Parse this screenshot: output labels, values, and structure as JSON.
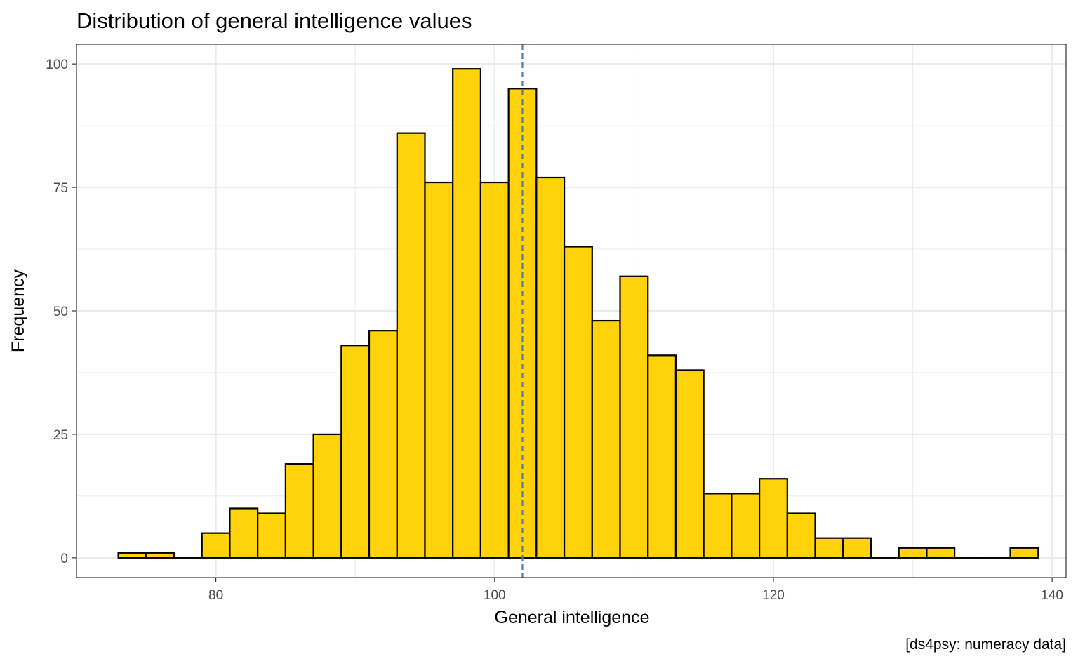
{
  "chart_data": {
    "type": "bar",
    "title": "Distribution of general intelligence values",
    "xlabel": "General intelligence",
    "ylabel": "Frequency",
    "caption": "[ds4psy: numeracy data]",
    "xlim": [
      70,
      141
    ],
    "ylim": [
      -4,
      104
    ],
    "x_ticks": [
      80,
      100,
      120,
      140
    ],
    "y_ticks": [
      0,
      25,
      50,
      75,
      100
    ],
    "bin_width": 2,
    "bins": [
      {
        "x0": 73,
        "x1": 75,
        "count": 1
      },
      {
        "x0": 75,
        "x1": 77,
        "count": 1
      },
      {
        "x0": 77,
        "x1": 79,
        "count": 0
      },
      {
        "x0": 79,
        "x1": 81,
        "count": 5
      },
      {
        "x0": 81,
        "x1": 83,
        "count": 10
      },
      {
        "x0": 83,
        "x1": 85,
        "count": 9
      },
      {
        "x0": 85,
        "x1": 87,
        "count": 19
      },
      {
        "x0": 87,
        "x1": 89,
        "count": 25
      },
      {
        "x0": 89,
        "x1": 91,
        "count": 43
      },
      {
        "x0": 91,
        "x1": 93,
        "count": 46
      },
      {
        "x0": 93,
        "x1": 95,
        "count": 86
      },
      {
        "x0": 95,
        "x1": 97,
        "count": 76
      },
      {
        "x0": 97,
        "x1": 99,
        "count": 99
      },
      {
        "x0": 99,
        "x1": 101,
        "count": 76
      },
      {
        "x0": 101,
        "x1": 103,
        "count": 95
      },
      {
        "x0": 103,
        "x1": 105,
        "count": 77
      },
      {
        "x0": 105,
        "x1": 107,
        "count": 63
      },
      {
        "x0": 107,
        "x1": 109,
        "count": 48
      },
      {
        "x0": 109,
        "x1": 111,
        "count": 57
      },
      {
        "x0": 111,
        "x1": 113,
        "count": 41
      },
      {
        "x0": 113,
        "x1": 115,
        "count": 38
      },
      {
        "x0": 115,
        "x1": 117,
        "count": 13
      },
      {
        "x0": 117,
        "x1": 119,
        "count": 13
      },
      {
        "x0": 119,
        "x1": 121,
        "count": 16
      },
      {
        "x0": 121,
        "x1": 123,
        "count": 9
      },
      {
        "x0": 123,
        "x1": 125,
        "count": 4
      },
      {
        "x0": 125,
        "x1": 127,
        "count": 4
      },
      {
        "x0": 127,
        "x1": 129,
        "count": 0
      },
      {
        "x0": 129,
        "x1": 131,
        "count": 2
      },
      {
        "x0": 131,
        "x1": 133,
        "count": 2
      },
      {
        "x0": 133,
        "x1": 135,
        "count": 0
      },
      {
        "x0": 135,
        "x1": 137,
        "count": 0
      },
      {
        "x0": 137,
        "x1": 139,
        "count": 2
      }
    ],
    "mean_line": {
      "x": 102,
      "style": "dashed"
    },
    "grid": true,
    "legend": "none",
    "colors": {
      "bar_fill": "#FFD20A",
      "bar_stroke": "#000000",
      "mean_line": "#4F7CAC",
      "grid": "#EBEBEB",
      "panel_border": "#333333"
    }
  }
}
